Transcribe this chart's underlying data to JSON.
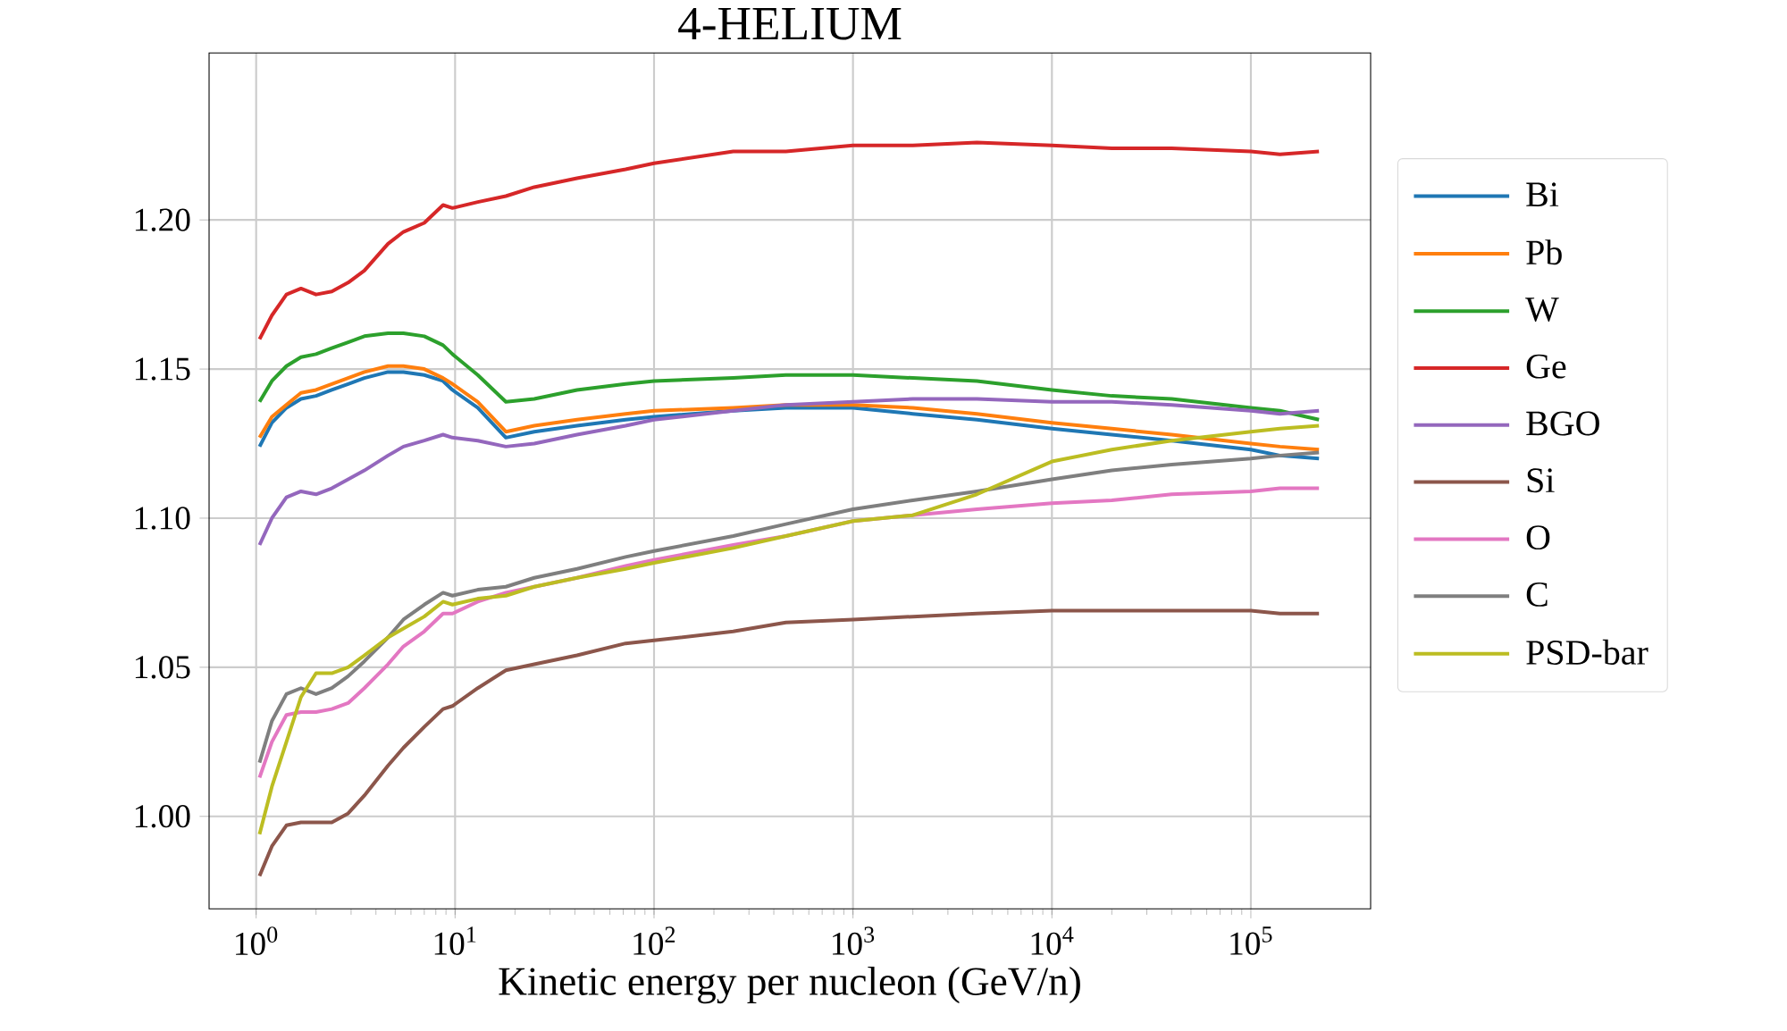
{
  "chart_data": {
    "type": "line",
    "title": "4-HELIUM",
    "xlabel": "Kinetic energy per nucleon (GeV/n)",
    "x": [
      1.04,
      1.2,
      1.42,
      1.68,
      2.0,
      2.4,
      2.9,
      3.5,
      4.6,
      5.5,
      7,
      8.7,
      9.7,
      13,
      18,
      25,
      41,
      72,
      100,
      250,
      460,
      1000,
      2000,
      4200,
      10000,
      20000,
      40000,
      100000,
      140000,
      220000
    ],
    "series": [
      {
        "name": "Bi",
        "color": "#1f77b4",
        "values": [
          1.124,
          1.132,
          1.137,
          1.14,
          1.141,
          1.143,
          1.145,
          1.147,
          1.149,
          1.149,
          1.148,
          1.146,
          1.143,
          1.137,
          1.127,
          1.129,
          1.131,
          1.133,
          1.134,
          1.136,
          1.137,
          1.137,
          1.135,
          1.133,
          1.13,
          1.128,
          1.126,
          1.123,
          1.121,
          1.12
        ]
      },
      {
        "name": "Pb",
        "color": "#ff7f0e",
        "values": [
          1.127,
          1.134,
          1.138,
          1.142,
          1.143,
          1.145,
          1.147,
          1.149,
          1.151,
          1.151,
          1.15,
          1.147,
          1.145,
          1.139,
          1.129,
          1.131,
          1.133,
          1.135,
          1.136,
          1.137,
          1.138,
          1.138,
          1.137,
          1.135,
          1.132,
          1.13,
          1.128,
          1.125,
          1.124,
          1.123
        ]
      },
      {
        "name": "W",
        "color": "#2ca02c",
        "values": [
          1.139,
          1.146,
          1.151,
          1.154,
          1.155,
          1.157,
          1.159,
          1.161,
          1.162,
          1.162,
          1.161,
          1.158,
          1.155,
          1.148,
          1.139,
          1.14,
          1.143,
          1.145,
          1.146,
          1.147,
          1.148,
          1.148,
          1.147,
          1.146,
          1.143,
          1.141,
          1.14,
          1.137,
          1.136,
          1.133
        ]
      },
      {
        "name": "Ge",
        "color": "#d62728",
        "values": [
          1.16,
          1.168,
          1.175,
          1.177,
          1.175,
          1.176,
          1.179,
          1.183,
          1.192,
          1.196,
          1.199,
          1.205,
          1.204,
          1.206,
          1.208,
          1.211,
          1.214,
          1.217,
          1.219,
          1.223,
          1.223,
          1.225,
          1.225,
          1.226,
          1.225,
          1.224,
          1.224,
          1.223,
          1.222,
          1.223
        ]
      },
      {
        "name": "BGO",
        "color": "#9467bd",
        "values": [
          1.091,
          1.1,
          1.107,
          1.109,
          1.108,
          1.11,
          1.113,
          1.116,
          1.121,
          1.124,
          1.126,
          1.128,
          1.127,
          1.126,
          1.124,
          1.125,
          1.128,
          1.131,
          1.133,
          1.136,
          1.138,
          1.139,
          1.14,
          1.14,
          1.139,
          1.139,
          1.138,
          1.136,
          1.135,
          1.136
        ]
      },
      {
        "name": "Si",
        "color": "#8c564b",
        "values": [
          0.98,
          0.99,
          0.997,
          0.998,
          0.998,
          0.998,
          1.001,
          1.007,
          1.017,
          1.023,
          1.03,
          1.036,
          1.037,
          1.043,
          1.049,
          1.051,
          1.054,
          1.058,
          1.059,
          1.062,
          1.065,
          1.066,
          1.067,
          1.068,
          1.069,
          1.069,
          1.069,
          1.069,
          1.068,
          1.068
        ]
      },
      {
        "name": "O",
        "color": "#e377c2",
        "values": [
          1.013,
          1.025,
          1.034,
          1.035,
          1.035,
          1.036,
          1.038,
          1.043,
          1.051,
          1.057,
          1.062,
          1.068,
          1.068,
          1.072,
          1.075,
          1.077,
          1.08,
          1.084,
          1.086,
          1.091,
          1.094,
          1.099,
          1.101,
          1.103,
          1.105,
          1.106,
          1.108,
          1.109,
          1.11,
          1.11
        ]
      },
      {
        "name": "C",
        "color": "#7f7f7f",
        "values": [
          1.018,
          1.032,
          1.041,
          1.043,
          1.041,
          1.043,
          1.047,
          1.052,
          1.06,
          1.066,
          1.071,
          1.075,
          1.074,
          1.076,
          1.077,
          1.08,
          1.083,
          1.087,
          1.089,
          1.094,
          1.098,
          1.103,
          1.106,
          1.109,
          1.113,
          1.116,
          1.118,
          1.12,
          1.121,
          1.122
        ]
      },
      {
        "name": "PSD-bar",
        "color": "#bcbd22",
        "values": [
          0.994,
          1.01,
          1.025,
          1.04,
          1.048,
          1.048,
          1.05,
          1.054,
          1.06,
          1.063,
          1.067,
          1.072,
          1.071,
          1.073,
          1.074,
          1.077,
          1.08,
          1.083,
          1.085,
          1.09,
          1.094,
          1.099,
          1.101,
          1.108,
          1.119,
          1.123,
          1.126,
          1.129,
          1.13,
          1.131
        ]
      }
    ],
    "xlim": [
      0.58,
      400000
    ],
    "ylim": [
      0.969,
      1.256
    ],
    "xticks": [
      {
        "value": 1,
        "label": "10$^{0}$"
      },
      {
        "value": 10,
        "label": "10$^{1}$"
      },
      {
        "value": 100,
        "label": "10$^{2}$"
      },
      {
        "value": 1000,
        "label": "10$^{3}$"
      },
      {
        "value": 10000,
        "label": "10$^{4}$"
      },
      {
        "value": 100000,
        "label": "10$^{5}$"
      }
    ],
    "yticks": [
      {
        "value": 1.0,
        "label": "1.00"
      },
      {
        "value": 1.05,
        "label": "1.05"
      },
      {
        "value": 1.1,
        "label": "1.10"
      },
      {
        "value": 1.15,
        "label": "1.15"
      },
      {
        "value": 1.2,
        "label": "1.20"
      }
    ],
    "log": "x",
    "grid": true,
    "legend": "right",
    "line_style": "solid"
  }
}
